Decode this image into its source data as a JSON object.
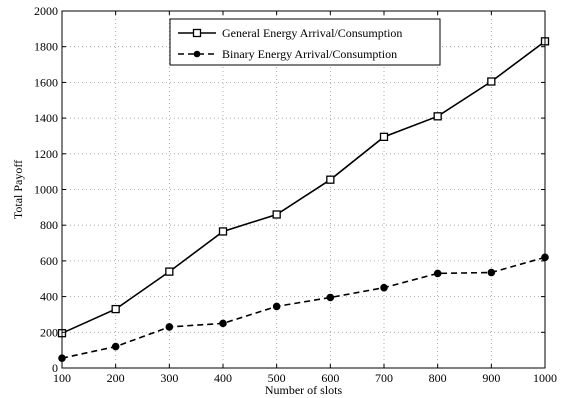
{
  "chart_data": {
    "type": "line",
    "title": "",
    "xlabel": "Number of slots",
    "ylabel": "Total Payoff",
    "xlim": [
      100,
      1000
    ],
    "ylim": [
      0,
      2000
    ],
    "xticks": [
      100,
      200,
      300,
      400,
      500,
      600,
      700,
      800,
      900,
      1000
    ],
    "yticks": [
      0,
      200,
      400,
      600,
      800,
      1000,
      1200,
      1400,
      1600,
      1800,
      2000
    ],
    "grid": true,
    "legend": "top-center",
    "x": [
      100,
      200,
      300,
      400,
      500,
      600,
      700,
      800,
      900,
      1000
    ],
    "series": [
      {
        "name": "General Energy Arrival/Consumption",
        "values": [
          195,
          330,
          540,
          765,
          860,
          1055,
          1295,
          1410,
          1605,
          1830
        ],
        "line": "solid",
        "marker": "square",
        "color": "#000000"
      },
      {
        "name": "Binary Energy Arrival/Consumption",
        "values": [
          55,
          120,
          230,
          250,
          345,
          395,
          450,
          530,
          535,
          620
        ],
        "line": "dashed",
        "marker": "circle",
        "color": "#000000"
      }
    ]
  }
}
